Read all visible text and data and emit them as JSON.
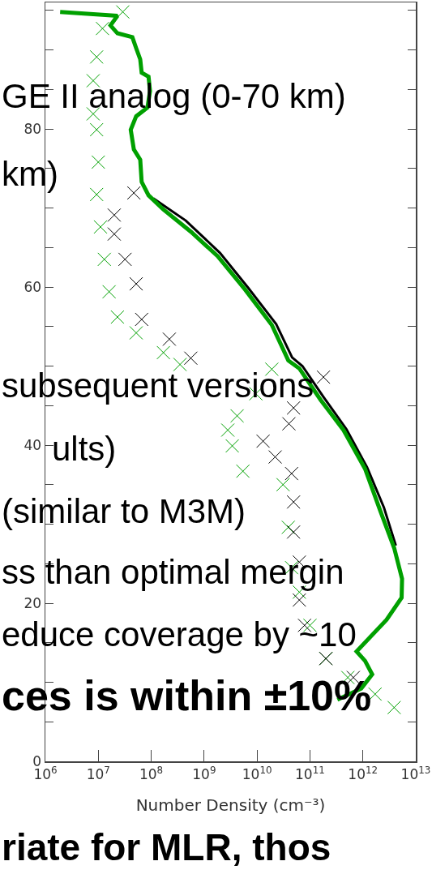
{
  "chart_data": {
    "type": "line",
    "xlabel": "Number Density (cm⁻³)",
    "log": "x",
    "grid": false,
    "xlim": [
      1000000,
      10000000000000
    ],
    "xticks": [
      {
        "value": 1000000,
        "label": "10$^{6}$"
      },
      {
        "value": 10000000,
        "label": "10$^{7}$"
      },
      {
        "value": 100000000,
        "label": "10$^{8}$"
      },
      {
        "value": 1000000000,
        "label": "10$^{9}$"
      },
      {
        "value": 10000000000,
        "label": "10$^{10}$"
      },
      {
        "value": 100000000000,
        "label": "10$^{11}$"
      },
      {
        "value": 1000000000000,
        "label": "10$^{12}$"
      },
      {
        "value": 10000000000000,
        "label": "10$^{13}$"
      }
    ],
    "ylim": [
      0,
      96
    ],
    "yticks": [
      0,
      {
        "value": 5,
        "label": null
      },
      {
        "value": 10,
        "label": null
      },
      {
        "value": 15,
        "label": null
      },
      20,
      {
        "value": 25,
        "label": null
      },
      {
        "value": 30,
        "label": null
      },
      {
        "value": 35,
        "label": null
      },
      40,
      {
        "value": 45,
        "label": null
      },
      {
        "value": 50,
        "label": null
      },
      {
        "value": 55,
        "label": null
      },
      60,
      {
        "value": 65,
        "label": null
      },
      {
        "value": 70,
        "label": null
      },
      {
        "value": 75,
        "label": null
      },
      80,
      {
        "value": 85,
        "label": null
      },
      {
        "value": 90,
        "label": null
      },
      {
        "value": 95,
        "label": null
      }
    ],
    "series": [
      {
        "color": "#000000",
        "marker": "none",
        "line_style": "solid",
        "x": [
          110000000.0,
          450000000.0,
          2000000000.0,
          6800000000.0,
          23000000000.0,
          46000000000.0,
          72000000000.0,
          180000000000.0,
          490000000000.0,
          1200000000000.0,
          2500000000000.0,
          4200000000000.0
        ],
        "values": [
          71.2,
          68.4,
          64.3,
          59.9,
          55.3,
          51.1,
          50.0,
          46.1,
          42.0,
          37.2,
          32.1,
          27.3
        ]
      },
      {
        "color": "#00a000",
        "marker": "none",
        "line_style": "solid",
        "x": [
          1900000.0,
          23000000.0,
          17000000.0,
          23000000.0,
          44000000.0,
          52000000.0,
          62000000.0,
          66000000.0,
          89000000.0,
          95000000.0,
          85000000.0,
          52000000.0,
          41000000.0,
          47000000.0,
          62000000.0,
          66000000.0,
          89000000.0,
          170000000.0,
          560000000.0,
          1800000000.0,
          5900000000.0,
          19000000000.0,
          39000000000.0,
          63000000000.0,
          160000000000.0,
          430000000000.0,
          1100000000000.0,
          2100000000000.0,
          3900000000000.0,
          5500000000000.0,
          5400000000000.0,
          2800000000000.0,
          760000000000.0,
          1100000000000.0,
          1500000000000.0,
          930000000000.0,
          330000000000.0
        ],
        "values": [
          94.8,
          94.3,
          93.1,
          92.1,
          91.6,
          90.2,
          88.8,
          87.1,
          86.6,
          84.8,
          82.7,
          81.6,
          79.9,
          77.4,
          76.1,
          73.3,
          71.6,
          69.8,
          67.0,
          63.9,
          59.7,
          55.2,
          50.7,
          49.7,
          45.7,
          41.9,
          37.0,
          31.8,
          27.0,
          23.1,
          20.7,
          17.9,
          13.9,
          12.7,
          11.0,
          9.2,
          7.8
        ]
      },
      {
        "type": "scatter",
        "color": "#00a000",
        "marker": "cross",
        "x": [
          29000000.0,
          12000000.0,
          9300000.0,
          8000000.0,
          8000000.0,
          9300000.0,
          10000000.0,
          9300000.0,
          11000000.0,
          13000000.0,
          16000000.0,
          23000000.0,
          52000000.0,
          170000000.0,
          350000000.0,
          19000000000.0,
          9500000000.0,
          4200000000.0,
          2800000000.0,
          3400000000.0,
          5400000000.0,
          31000000000.0,
          39000000000.0,
          45000000000.0,
          63000000000.0,
          100000000000.0,
          200000000000.0,
          520000000000.0,
          1700000000000.0,
          3900000000000.0
        ],
        "values": [
          94.8,
          92.7,
          89.1,
          86.1,
          81.9,
          79.9,
          75.8,
          71.7,
          67.6,
          63.5,
          59.4,
          56.2,
          54.2,
          51.7,
          50.2,
          49.6,
          46.5,
          43.7,
          41.9,
          39.9,
          36.7,
          35.0,
          29.6,
          24.5,
          21.4,
          17.2,
          13.0,
          10.6,
          8.5,
          6.8
        ]
      },
      {
        "type": "scatter",
        "color": "#000000",
        "marker": "cross",
        "x": [
          47000000.0,
          20000000.0,
          20000000.0,
          32000000.0,
          52000000.0,
          66000000.0,
          220000000.0,
          560000000.0,
          180000000000.0,
          49000000000.0,
          40000000000.0,
          13000000000.0,
          22000000000.0,
          45000000000.0,
          49000000000.0,
          49000000000.0,
          63000000000.0,
          63000000000.0,
          79000000000.0,
          200000000000.0,
          660000000000.0
        ],
        "values": [
          71.9,
          69.1,
          66.7,
          63.5,
          60.4,
          55.9,
          53.4,
          51.0,
          48.6,
          44.7,
          42.7,
          40.5,
          38.5,
          36.4,
          32.8,
          29.0,
          25.2,
          20.4,
          17.2,
          13.0,
          10.6
        ]
      }
    ],
    "annotations": [
      "GE II analog (0-70 km)",
      "km)",
      "subsequent versions",
      "ults)",
      "(similar to M3M)",
      "ss than optimal mergin",
      "educe coverage by ~10",
      "ces is within ±10%",
      "riate for MLR, thos"
    ]
  }
}
